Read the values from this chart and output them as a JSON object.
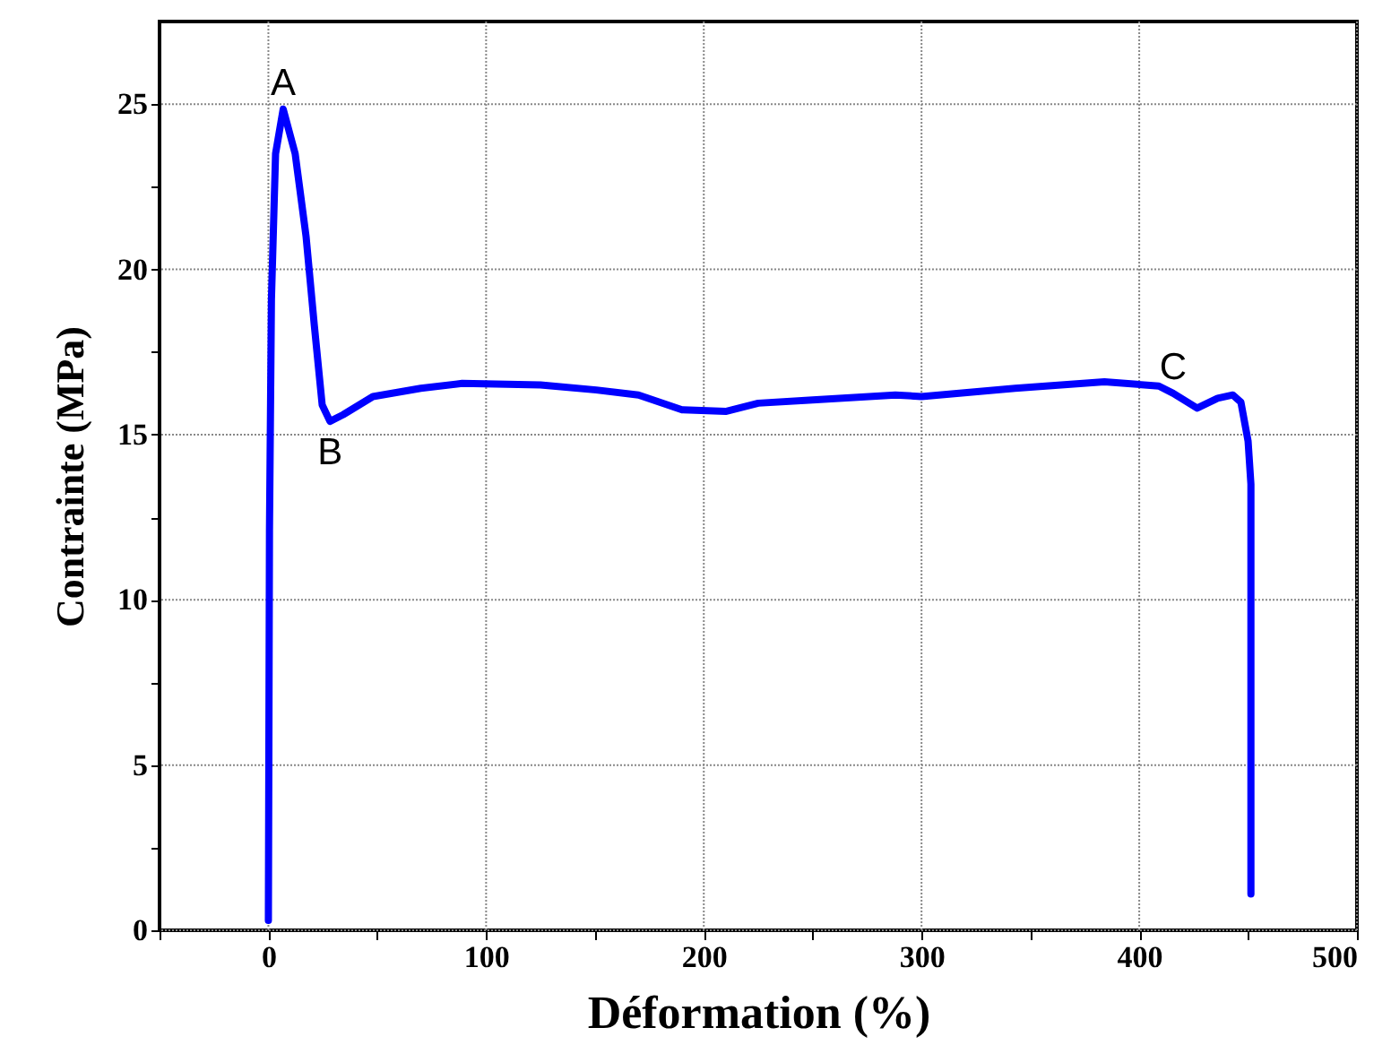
{
  "chart_data": {
    "type": "line",
    "xlabel": "Déformation (%)",
    "ylabel": "Contrainte (MPa)",
    "xlim": [
      -50,
      500
    ],
    "ylim": [
      0,
      27.5
    ],
    "xticks": [
      {
        "value": -50,
        "label": null
      },
      0,
      {
        "value": 50,
        "label": null
      },
      100,
      {
        "value": 150,
        "label": null
      },
      200,
      {
        "value": 250,
        "label": null
      },
      300,
      {
        "value": 350,
        "label": null
      },
      400,
      {
        "value": 450,
        "label": null
      },
      500
    ],
    "yticks": [
      0,
      {
        "value": 2.5,
        "label": null
      },
      5,
      {
        "value": 7.5,
        "label": null
      },
      10,
      {
        "value": 12.5,
        "label": null
      },
      15,
      {
        "value": 17.5,
        "label": null
      },
      20,
      {
        "value": 22.5,
        "label": null
      },
      25
    ],
    "grid": true,
    "marker": "none",
    "line_style": "solid",
    "series": [
      {
        "color": "#0000ff",
        "x": [
          0,
          0.5,
          1.4,
          3.3,
          6.8,
          12.3,
          17.3,
          21.1,
          24.7,
          28.3,
          34.3,
          48,
          70,
          89,
          125,
          150.6,
          170,
          190,
          210,
          225,
          250,
          288,
          300,
          343,
          384,
          409,
          415.6,
          426.6,
          436,
          443,
          446.7,
          450,
          451.3,
          451.3,
          451.3
        ],
        "values": [
          0.3,
          12.1,
          19.1,
          23.5,
          24.85,
          23.5,
          21.0,
          18.3,
          15.9,
          15.4,
          15.6,
          16.15,
          16.4,
          16.55,
          16.5,
          16.35,
          16.2,
          15.75,
          15.7,
          15.95,
          16.05,
          16.2,
          16.15,
          16.4,
          16.6,
          16.47,
          16.25,
          15.8,
          16.1,
          16.2,
          15.98,
          14.8,
          13.5,
          9.2,
          1.1
        ]
      }
    ],
    "annotations": [
      {
        "text": "A",
        "x": 6.8,
        "y": 24.85
      },
      {
        "text": "B",
        "x": 28.3,
        "y": 15.4
      },
      {
        "text": "C",
        "x": 415.6,
        "y": 16.25
      }
    ]
  }
}
